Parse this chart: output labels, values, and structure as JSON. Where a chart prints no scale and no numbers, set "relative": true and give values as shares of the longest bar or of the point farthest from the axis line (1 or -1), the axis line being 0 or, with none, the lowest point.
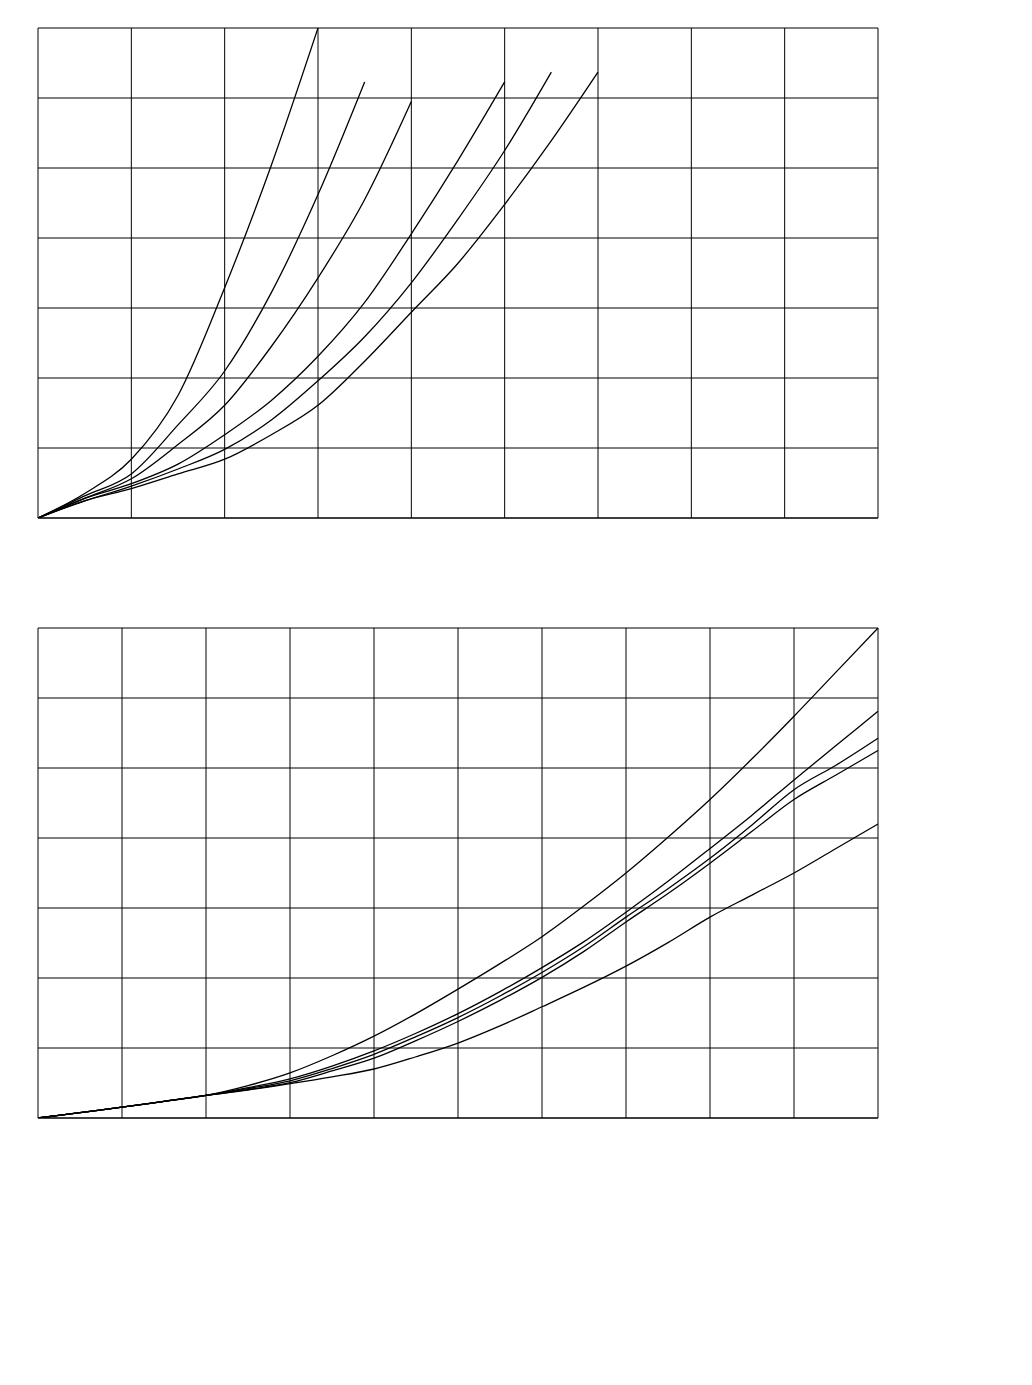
{
  "chart_data": [
    {
      "type": "line",
      "relative": true,
      "grid": true,
      "marker": "none",
      "line_style": "solid",
      "tick_labels": false,
      "categories": [
        null,
        null,
        null,
        null,
        null,
        null,
        null,
        null,
        null,
        null,
        null,
        null,
        null,
        null,
        null,
        null,
        null,
        null,
        null
      ],
      "series": [
        {
          "color": "#000000",
          "values": [
            0,
            0.05,
            0.12,
            0.25,
            0.47,
            0.72,
            1.0,
            null,
            null,
            null,
            null,
            null,
            null,
            null,
            null,
            null,
            null,
            null,
            null
          ]
        },
        {
          "color": "#000000",
          "values": [
            0,
            0.045,
            0.09,
            0.19,
            0.3,
            0.46,
            0.66,
            0.89,
            null,
            null,
            null,
            null,
            null,
            null,
            null,
            null,
            null,
            null,
            null
          ]
        },
        {
          "color": "#000000",
          "values": [
            0,
            0.04,
            0.08,
            0.15,
            0.23,
            0.35,
            0.49,
            0.65,
            0.85,
            null,
            null,
            null,
            null,
            null,
            null,
            null,
            null,
            null,
            null
          ]
        },
        {
          "color": "#000000",
          "values": [
            0,
            0.04,
            0.07,
            0.11,
            0.17,
            0.24,
            0.33,
            0.44,
            0.58,
            0.73,
            0.89,
            null,
            null,
            null,
            null,
            null,
            null,
            null,
            null
          ]
        },
        {
          "color": "#000000",
          "values": [
            0,
            0.035,
            0.065,
            0.1,
            0.14,
            0.2,
            0.28,
            0.37,
            0.48,
            0.61,
            0.75,
            0.91,
            null,
            null,
            null,
            null,
            null,
            null,
            null
          ]
        },
        {
          "color": "#000000",
          "values": [
            0,
            0.035,
            0.06,
            0.09,
            0.12,
            0.17,
            0.23,
            0.32,
            0.42,
            0.52,
            0.64,
            0.77,
            0.91,
            null,
            null,
            null,
            null,
            null,
            null
          ]
        }
      ]
    },
    {
      "type": "line",
      "relative": true,
      "grid": true,
      "marker": "none",
      "line_style": "solid",
      "tick_labels": false,
      "categories": [
        null,
        null,
        null,
        null,
        null,
        null,
        null,
        null,
        null,
        null,
        null,
        null,
        null,
        null,
        null,
        null,
        null,
        null,
        null,
        null,
        null
      ],
      "series": [
        {
          "color": "#000000",
          "values": [
            0,
            0.011,
            0.022,
            0.034,
            0.046,
            0.066,
            0.092,
            0.127,
            0.167,
            0.213,
            0.263,
            0.315,
            0.37,
            0.433,
            0.5,
            0.573,
            0.65,
            0.733,
            0.82,
            0.91,
            1.0
          ]
        },
        {
          "color": "#000000",
          "values": [
            0,
            0.011,
            0.022,
            0.034,
            0.046,
            0.062,
            0.08,
            0.106,
            0.137,
            0.173,
            0.213,
            0.258,
            0.307,
            0.36,
            0.42,
            0.483,
            0.55,
            0.618,
            0.69,
            0.76,
            0.83
          ]
        },
        {
          "color": "#000000",
          "values": [
            0,
            0.011,
            0.022,
            0.034,
            0.046,
            0.06,
            0.076,
            0.101,
            0.13,
            0.166,
            0.205,
            0.249,
            0.297,
            0.35,
            0.41,
            0.468,
            0.53,
            0.598,
            0.67,
            0.72,
            0.775
          ]
        },
        {
          "color": "#000000",
          "values": [
            0,
            0.011,
            0.022,
            0.034,
            0.046,
            0.058,
            0.072,
            0.096,
            0.122,
            0.158,
            0.197,
            0.24,
            0.287,
            0.34,
            0.4,
            0.458,
            0.52,
            0.585,
            0.65,
            0.7,
            0.75
          ]
        },
        {
          "color": "#000000",
          "values": [
            0,
            0.011,
            0.022,
            0.034,
            0.046,
            0.057,
            0.07,
            0.084,
            0.1,
            0.125,
            0.153,
            0.188,
            0.227,
            0.267,
            0.31,
            0.358,
            0.41,
            0.455,
            0.5,
            0.55,
            0.6
          ]
        }
      ]
    }
  ]
}
